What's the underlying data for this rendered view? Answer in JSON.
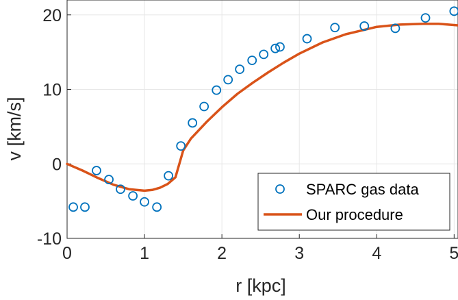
{
  "chart_data": {
    "type": "line",
    "xlabel": "r [kpc]",
    "ylabel": "v [km/s]",
    "xlim": [
      0,
      5.05
    ],
    "ylim": [
      -10,
      22
    ],
    "xticks": [
      0,
      1,
      2,
      3,
      4,
      5
    ],
    "xtick_labels": [
      "0",
      "1",
      "2",
      "3",
      "4",
      "5"
    ],
    "yticks": [
      -10,
      0,
      10,
      20
    ],
    "ytick_labels": [
      "-10",
      "0",
      "10",
      "20"
    ],
    "grid": true,
    "legend_position": "bottom-right",
    "series": [
      {
        "name": "SPARC gas data",
        "kind": "scatter",
        "marker": "open-circle",
        "color": "#0072BD",
        "x": [
          0.08,
          0.23,
          0.38,
          0.54,
          0.69,
          0.85,
          1.0,
          1.16,
          1.31,
          1.47,
          1.62,
          1.77,
          1.93,
          2.08,
          2.23,
          2.39,
          2.54,
          2.69,
          2.75,
          3.1,
          3.46,
          3.84,
          4.24,
          4.63,
          5.0
        ],
        "y": [
          -5.8,
          -5.8,
          -0.9,
          -2.1,
          -3.4,
          -4.3,
          -5.1,
          -5.8,
          -1.6,
          2.4,
          5.5,
          7.7,
          9.9,
          11.3,
          12.7,
          13.9,
          14.7,
          15.5,
          15.7,
          16.8,
          18.3,
          18.5,
          18.2,
          19.6,
          20.5
        ]
      },
      {
        "name": "Our procedure",
        "kind": "line",
        "color": "#D95319",
        "x": [
          0,
          0.2,
          0.4,
          0.6,
          0.8,
          1.0,
          1.1,
          1.2,
          1.3,
          1.4,
          1.5,
          1.6,
          1.8,
          2.0,
          2.2,
          2.4,
          2.6,
          2.8,
          3.0,
          3.3,
          3.6,
          4.0,
          4.3,
          4.6,
          4.8,
          5.05
        ],
        "y": [
          0,
          -0.9,
          -1.9,
          -2.8,
          -3.4,
          -3.6,
          -3.5,
          -3.2,
          -2.7,
          -1.8,
          1.8,
          3.4,
          5.6,
          7.6,
          9.4,
          10.9,
          12.3,
          13.6,
          14.8,
          16.3,
          17.4,
          18.4,
          18.7,
          18.8,
          18.8,
          18.6
        ]
      }
    ]
  }
}
